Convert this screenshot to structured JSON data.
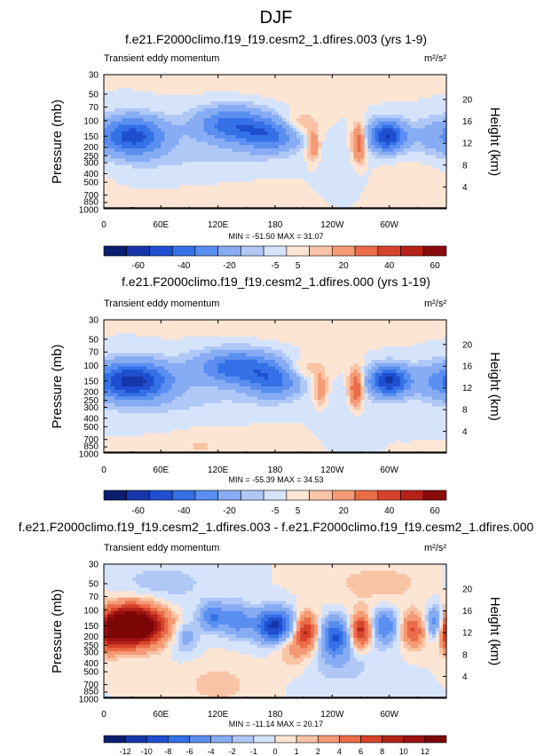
{
  "page_title": "DJF",
  "chart_data": [
    {
      "type": "heatmap",
      "title": "f.e21.F2000climo.f19_f19.cesm2_1.dfires.003 (yrs 1-9)",
      "subtitle": "Transient eddy momentum",
      "units": "m²/s²",
      "ylabel": "Pressure (mb)",
      "ylabel_right": "Height (km)",
      "x_ticks": [
        "0",
        "60E",
        "120E",
        "180",
        "120W",
        "60W"
      ],
      "y_ticks": [
        "30",
        "50",
        "70",
        "100",
        "150",
        "200",
        "250",
        "300",
        "400",
        "500",
        "700",
        "850",
        "1000"
      ],
      "y_ticks_right": [
        "20",
        "16",
        "12",
        "8",
        "4"
      ],
      "stats": "MIN = -51.50  MAX = 31.07",
      "colorbar_labels": [
        "-60",
        "-40",
        "-20",
        "-5",
        "5",
        "20",
        "40",
        "60"
      ],
      "features": [
        {
          "lon": 30,
          "p": 150,
          "value": -45,
          "wx": 25,
          "wy": 0.35
        },
        {
          "lon": 135,
          "p": 110,
          "value": -35,
          "wx": 28,
          "wy": 0.32
        },
        {
          "lon": 175,
          "p": 150,
          "value": -30,
          "wx": 22,
          "wy": 0.28
        },
        {
          "lon": 205,
          "p": 110,
          "value": 12,
          "wx": 14,
          "wy": 0.22
        },
        {
          "lon": 220,
          "p": 190,
          "value": 20,
          "wx": 5,
          "wy": 0.3
        },
        {
          "lon": 268,
          "p": 180,
          "value": 30,
          "wx": 5,
          "wy": 0.35
        },
        {
          "lon": 298,
          "p": 150,
          "value": -51,
          "wx": 14,
          "wy": 0.28
        },
        {
          "lon": 340,
          "p": 150,
          "value": -8,
          "wx": 12,
          "wy": 0.35
        },
        {
          "lon": 110,
          "p": 300,
          "value": -6,
          "wx": 60,
          "wy": 0.45
        },
        {
          "lon": 250,
          "p": 350,
          "value": -4,
          "wx": 20,
          "wy": 0.5
        },
        {
          "lon": 135,
          "p": 600,
          "value": 3,
          "wx": 60,
          "wy": 0.6
        },
        {
          "lon": 320,
          "p": 500,
          "value": 3,
          "wx": 30,
          "wy": 0.6
        },
        {
          "lon": 200,
          "p": 30,
          "value": 3,
          "wx": 70,
          "wy": 0.5
        }
      ]
    },
    {
      "type": "heatmap",
      "title": "f.e21.F2000climo.f19_f19.cesm2_1.dfires.000 (yrs 1-19)",
      "subtitle": "Transient eddy momentum",
      "units": "m²/s²",
      "ylabel": "Pressure (mb)",
      "ylabel_right": "Height (km)",
      "x_ticks": [
        "0",
        "60E",
        "120E",
        "180",
        "120W",
        "60W"
      ],
      "y_ticks": [
        "30",
        "50",
        "70",
        "100",
        "150",
        "200",
        "250",
        "300",
        "400",
        "500",
        "700",
        "850",
        "1000"
      ],
      "y_ticks_right": [
        "20",
        "16",
        "12",
        "8",
        "4"
      ],
      "stats": "MIN = -55.39  MAX = 34.53",
      "colorbar_labels": [
        "-60",
        "-40",
        "-20",
        "-5",
        "5",
        "20",
        "40",
        "60"
      ],
      "features": [
        {
          "lon": 30,
          "p": 150,
          "value": -55,
          "wx": 28,
          "wy": 0.35
        },
        {
          "lon": 140,
          "p": 105,
          "value": -36,
          "wx": 32,
          "wy": 0.32
        },
        {
          "lon": 180,
          "p": 150,
          "value": -28,
          "wx": 20,
          "wy": 0.3
        },
        {
          "lon": 210,
          "p": 110,
          "value": 12,
          "wx": 16,
          "wy": 0.22
        },
        {
          "lon": 228,
          "p": 190,
          "value": 18,
          "wx": 5,
          "wy": 0.3
        },
        {
          "lon": 265,
          "p": 180,
          "value": 34,
          "wx": 5,
          "wy": 0.35
        },
        {
          "lon": 300,
          "p": 150,
          "value": -52,
          "wx": 15,
          "wy": 0.28
        },
        {
          "lon": 340,
          "p": 150,
          "value": -7,
          "wx": 12,
          "wy": 0.35
        },
        {
          "lon": 110,
          "p": 300,
          "value": -6,
          "wx": 60,
          "wy": 0.45
        },
        {
          "lon": 250,
          "p": 350,
          "value": -4,
          "wx": 20,
          "wy": 0.5
        },
        {
          "lon": 135,
          "p": 550,
          "value": 3,
          "wx": 60,
          "wy": 0.6
        },
        {
          "lon": 100,
          "p": 850,
          "value": 4,
          "wx": 15,
          "wy": 0.25
        },
        {
          "lon": 200,
          "p": 30,
          "value": 3,
          "wx": 70,
          "wy": 0.5
        }
      ]
    },
    {
      "type": "heatmap",
      "title": "f.e21.F2000climo.f19_f19.cesm2_1.dfires.003 - f.e21.F2000climo.f19_f19.cesm2_1.dfires.000",
      "subtitle": "Transient eddy momentum",
      "units": "m²/s²",
      "ylabel": "Pressure (mb)",
      "ylabel_right": "Height (km)",
      "x_ticks": [
        "0",
        "60E",
        "120E",
        "180",
        "120W",
        "60W"
      ],
      "y_ticks": [
        "30",
        "50",
        "70",
        "100",
        "150",
        "200",
        "250",
        "300",
        "400",
        "500",
        "700",
        "850",
        "1000"
      ],
      "y_ticks_right": [
        "20",
        "16",
        "12",
        "8",
        "4"
      ],
      "stats": "MIN = -11.14  MAX = 20.17",
      "colorbar_labels": [
        "-12",
        "-10",
        "-8",
        "-6",
        "-4",
        "-2",
        "-1",
        "0",
        "1",
        "2",
        "4",
        "6",
        "8",
        "10",
        "12"
      ],
      "features": [
        {
          "lon": 30,
          "p": 150,
          "value": 20,
          "wx": 22,
          "wy": 0.35
        },
        {
          "lon": 5,
          "p": 180,
          "value": 6,
          "wx": 8,
          "wy": 0.35
        },
        {
          "lon": 85,
          "p": 200,
          "value": -3,
          "wx": 10,
          "wy": 0.3
        },
        {
          "lon": 115,
          "p": 120,
          "value": -6,
          "wx": 10,
          "wy": 0.25
        },
        {
          "lon": 140,
          "p": 130,
          "value": -5,
          "wx": 10,
          "wy": 0.3
        },
        {
          "lon": 180,
          "p": 150,
          "value": -11,
          "wx": 15,
          "wy": 0.3
        },
        {
          "lon": 212,
          "p": 170,
          "value": 8,
          "wx": 8,
          "wy": 0.3
        },
        {
          "lon": 243,
          "p": 200,
          "value": -8,
          "wx": 10,
          "wy": 0.35
        },
        {
          "lon": 270,
          "p": 170,
          "value": 9,
          "wx": 7,
          "wy": 0.3
        },
        {
          "lon": 295,
          "p": 150,
          "value": -6,
          "wx": 9,
          "wy": 0.3
        },
        {
          "lon": 325,
          "p": 170,
          "value": 6,
          "wx": 8,
          "wy": 0.3
        },
        {
          "lon": 350,
          "p": 140,
          "value": -8,
          "wx": 8,
          "wy": 0.3
        },
        {
          "lon": 200,
          "p": 250,
          "value": 3,
          "wx": 14,
          "wy": 0.4
        },
        {
          "lon": 120,
          "p": 700,
          "value": 1.5,
          "wx": 25,
          "wy": 0.4
        },
        {
          "lon": 250,
          "p": 400,
          "value": -1.5,
          "wx": 30,
          "wy": 0.45
        },
        {
          "lon": 60,
          "p": 50,
          "value": -1.5,
          "wx": 40,
          "wy": 0.4
        },
        {
          "lon": 290,
          "p": 50,
          "value": 1.5,
          "wx": 40,
          "wy": 0.4
        }
      ]
    }
  ]
}
